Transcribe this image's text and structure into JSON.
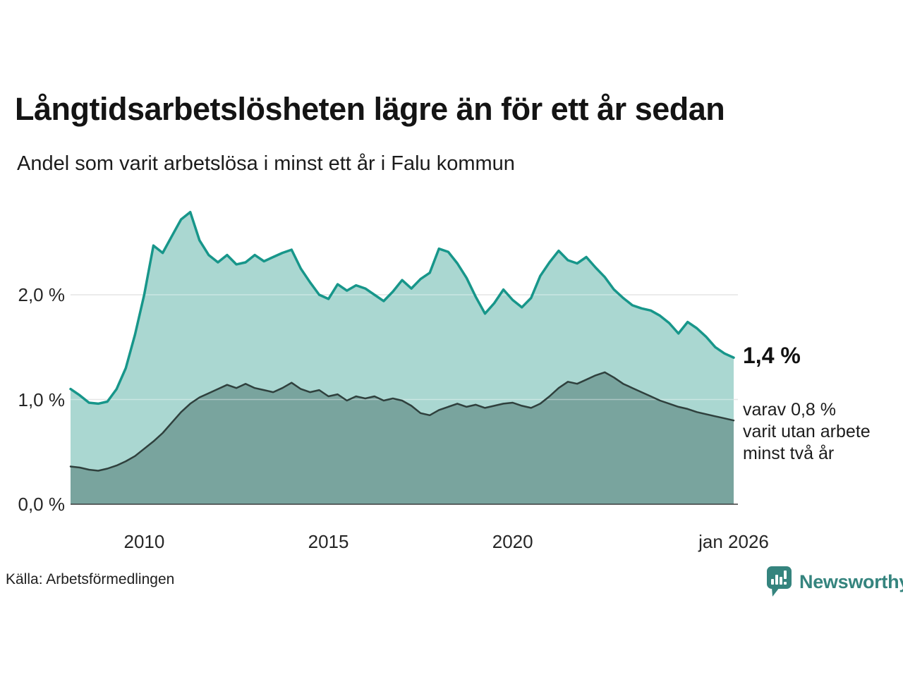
{
  "title": "Långtidsarbetslösheten lägre än för ett år sedan",
  "subtitle": "Andel som varit arbetslösa i minst ett år i Falu kommun",
  "source": "Källa: Arbetsförmedlingen",
  "logo": {
    "text": "Newsworthy"
  },
  "colors": {
    "brand_teal": "#35847e",
    "accent_line": "#17968a",
    "accent_fill": "#aad7d1",
    "dark_line": "#2f403d",
    "dark_fill": "#79a49e",
    "grid": "#d9d9d9",
    "axis": "#3b3b3b"
  },
  "annotations": {
    "total_value": "1,4 %",
    "two_year_lines": [
      "varav 0,8 %",
      "varit utan arbete",
      "minst två år"
    ]
  },
  "chart_data": {
    "type": "area",
    "title": "Långtidsarbetslösheten lägre än för ett år sedan",
    "subtitle": "Andel som varit arbetslösa i minst ett år i Falu kommun",
    "xlabel": "",
    "ylabel": "",
    "xlim": [
      2008,
      2026
    ],
    "ylim": [
      0,
      2.93
    ],
    "grid": true,
    "legend_position": "right-annotations",
    "x": [
      2008.0,
      2008.25,
      2008.5,
      2008.75,
      2009.0,
      2009.25,
      2009.5,
      2009.75,
      2010.0,
      2010.25,
      2010.5,
      2010.75,
      2011.0,
      2011.25,
      2011.5,
      2011.75,
      2012.0,
      2012.25,
      2012.5,
      2012.75,
      2013.0,
      2013.25,
      2013.5,
      2013.75,
      2014.0,
      2014.25,
      2014.5,
      2014.75,
      2015.0,
      2015.25,
      2015.5,
      2015.75,
      2016.0,
      2016.25,
      2016.5,
      2016.75,
      2017.0,
      2017.25,
      2017.5,
      2017.75,
      2018.0,
      2018.25,
      2018.5,
      2018.75,
      2019.0,
      2019.25,
      2019.5,
      2019.75,
      2020.0,
      2020.25,
      2020.5,
      2020.75,
      2021.0,
      2021.25,
      2021.5,
      2021.75,
      2022.0,
      2022.25,
      2022.5,
      2022.75,
      2023.0,
      2023.25,
      2023.5,
      2023.75,
      2024.0,
      2024.25,
      2024.5,
      2024.75,
      2025.0,
      2025.25,
      2025.5,
      2025.75,
      2026.0
    ],
    "series": [
      {
        "name": "Andel som varit arbetslösa minst ett år",
        "line_color": "#17968a",
        "fill_color": "#aad7d1",
        "line_width": 3.5,
        "end_value_label": "1,4 %",
        "values": [
          1.1,
          1.04,
          0.97,
          0.96,
          0.98,
          1.1,
          1.3,
          1.62,
          2.0,
          2.47,
          2.4,
          2.56,
          2.72,
          2.79,
          2.52,
          2.38,
          2.31,
          2.38,
          2.29,
          2.31,
          2.38,
          2.32,
          2.36,
          2.4,
          2.43,
          2.25,
          2.12,
          2.0,
          1.96,
          2.1,
          2.04,
          2.09,
          2.06,
          2.0,
          1.94,
          2.03,
          2.14,
          2.06,
          2.15,
          2.21,
          2.44,
          2.41,
          2.3,
          2.16,
          1.98,
          1.82,
          1.92,
          2.05,
          1.95,
          1.88,
          1.97,
          2.18,
          2.31,
          2.42,
          2.33,
          2.3,
          2.36,
          2.26,
          2.17,
          2.05,
          1.97,
          1.9,
          1.87,
          1.85,
          1.8,
          1.73,
          1.63,
          1.74,
          1.68,
          1.6,
          1.5,
          1.44,
          1.4
        ]
      },
      {
        "name": "varav utan arbete minst två år",
        "line_color": "#2f403d",
        "fill_color": "#79a49e",
        "line_width": 2.5,
        "end_value_label": "varav 0,8 % varit utan arbete minst två år",
        "values": [
          0.36,
          0.35,
          0.33,
          0.32,
          0.34,
          0.37,
          0.41,
          0.46,
          0.53,
          0.6,
          0.68,
          0.78,
          0.88,
          0.96,
          1.02,
          1.06,
          1.1,
          1.14,
          1.11,
          1.15,
          1.11,
          1.09,
          1.07,
          1.11,
          1.16,
          1.1,
          1.07,
          1.09,
          1.03,
          1.05,
          0.99,
          1.03,
          1.01,
          1.03,
          0.99,
          1.01,
          0.99,
          0.94,
          0.87,
          0.85,
          0.9,
          0.93,
          0.96,
          0.93,
          0.95,
          0.92,
          0.94,
          0.96,
          0.97,
          0.94,
          0.92,
          0.96,
          1.03,
          1.11,
          1.17,
          1.15,
          1.19,
          1.23,
          1.26,
          1.21,
          1.15,
          1.11,
          1.07,
          1.03,
          0.99,
          0.96,
          0.93,
          0.91,
          0.88,
          0.86,
          0.84,
          0.82,
          0.8
        ]
      }
    ],
    "yticks": [
      {
        "value": 0,
        "label": "0,0 %"
      },
      {
        "value": 1,
        "label": "1,0 %"
      },
      {
        "value": 2,
        "label": "2,0 %"
      }
    ],
    "xticks": [
      {
        "value": 2010,
        "label": "2010"
      },
      {
        "value": 2015,
        "label": "2015"
      },
      {
        "value": 2020,
        "label": "2020"
      },
      {
        "value": 2026,
        "label": "jan 2026"
      }
    ]
  }
}
